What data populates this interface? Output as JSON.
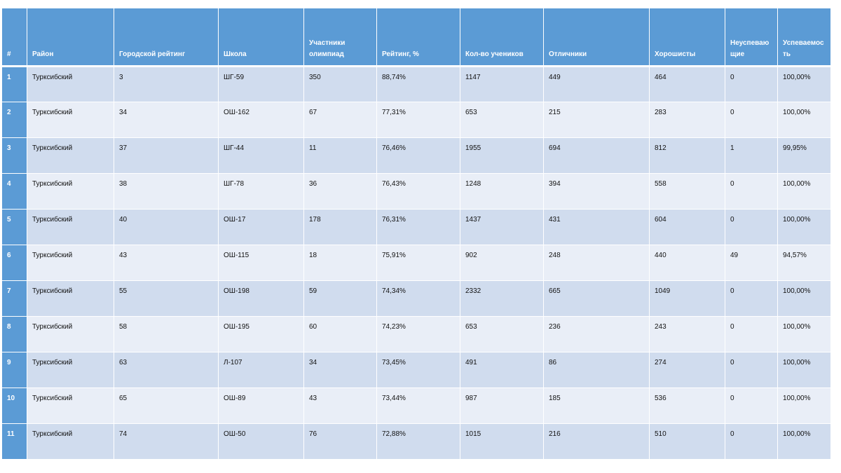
{
  "headers": [
    "#",
    "Район",
    "Городской рейтинг",
    "Школа",
    "Участники олимпиад",
    "Рейтинг, %",
    "Кол-во учеников",
    "Отличники",
    "Хорошисты",
    "Неуспеваю щие",
    "Успеваемос ть"
  ],
  "rows": [
    [
      "1",
      "Турксибский",
      "3",
      "ШГ-59",
      "350",
      "88,74%",
      "1147",
      "449",
      "464",
      "0",
      "100,00%"
    ],
    [
      "2",
      "Турксибский",
      "34",
      "ОШ-162",
      "67",
      "77,31%",
      "653",
      "215",
      "283",
      "0",
      "100,00%"
    ],
    [
      "3",
      "Турксибский",
      "37",
      "ШГ-44",
      "11",
      "76,46%",
      "1955",
      "694",
      "812",
      "1",
      "99,95%"
    ],
    [
      "4",
      "Турксибский",
      "38",
      "ШГ-78",
      "36",
      "76,43%",
      "1248",
      "394",
      "558",
      "0",
      "100,00%"
    ],
    [
      "5",
      "Турксибский",
      "40",
      "ОШ-17",
      "178",
      "76,31%",
      "1437",
      "431",
      "604",
      "0",
      "100,00%"
    ],
    [
      "6",
      "Турксибский",
      "43",
      "ОШ-115",
      "18",
      "75,91%",
      "902",
      "248",
      "440",
      "49",
      "94,57%"
    ],
    [
      "7",
      "Турксибский",
      "55",
      "ОШ-198",
      "59",
      "74,34%",
      "2332",
      "665",
      "1049",
      "0",
      "100,00%"
    ],
    [
      "8",
      "Турксибский",
      "58",
      "ОШ-195",
      "60",
      "74,23%",
      "653",
      "236",
      "243",
      "0",
      "100,00%"
    ],
    [
      "9",
      "Турксибский",
      "63",
      "Л-107",
      "34",
      "73,45%",
      "491",
      "86",
      "274",
      "0",
      "100,00%"
    ],
    [
      "10",
      "Турксибский",
      "65",
      "ОШ-89",
      "43",
      "73,44%",
      "987",
      "185",
      "536",
      "0",
      "100,00%"
    ],
    [
      "11",
      "Турксибский",
      "74",
      "ОШ-50",
      "76",
      "72,88%",
      "1015",
      "216",
      "510",
      "0",
      "100,00%"
    ]
  ],
  "colors": {
    "header": "#5b9bd5",
    "row_odd": "#d0dcee",
    "row_even": "#e9eef7"
  }
}
